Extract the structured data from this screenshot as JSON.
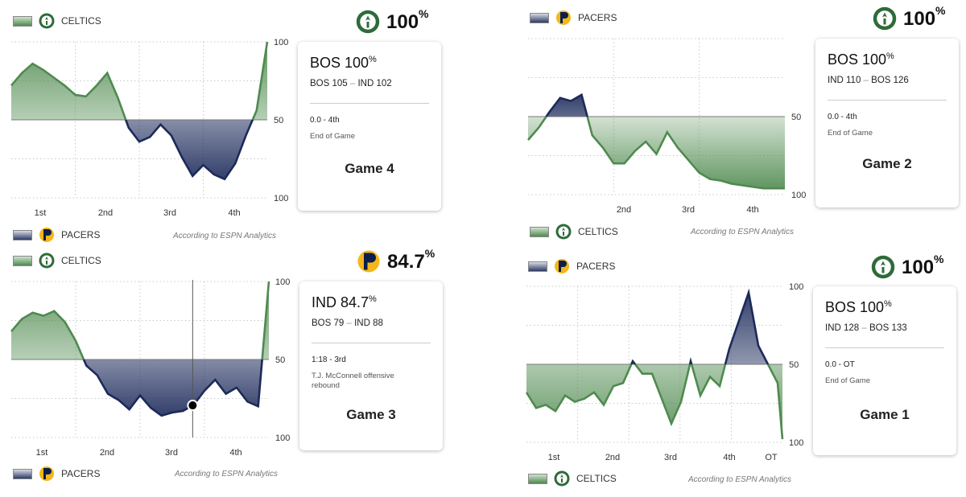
{
  "colors": {
    "celtics": "#4f8a4f",
    "pacers": "#1c2a5a"
  },
  "panels": [
    {
      "top_team": "CELTICS",
      "bottom_team": "PACERS",
      "winner": "100",
      "winner_team": "celtics",
      "card": {
        "prob": "BOS 100",
        "score_a": "BOS 105",
        "score_b": "IND 102",
        "clock": "0.0 - 4th",
        "event": "End of Game",
        "game": "Game 4"
      },
      "credit": "According to ESPN Analytics"
    },
    {
      "top_team": "PACERS",
      "bottom_team": "CELTICS",
      "winner": "100",
      "winner_team": "celtics",
      "card": {
        "prob": "BOS 100",
        "score_a": "IND 110",
        "score_b": "BOS 126",
        "clock": "0.0 - 4th",
        "event": "End of Game",
        "game": "Game 2"
      },
      "credit": "According to ESPN Analytics"
    },
    {
      "top_team": "CELTICS",
      "bottom_team": "PACERS",
      "winner": "84.7",
      "winner_team": "pacers",
      "card": {
        "prob": "IND 84.7",
        "score_a": "BOS 79",
        "score_b": "IND 88",
        "clock": "1:18 - 3rd",
        "event": "T.J. McConnell offensive rebound",
        "game": "Game 3"
      },
      "credit": "According to ESPN Analytics"
    },
    {
      "top_team": "PACERS",
      "bottom_team": "CELTICS",
      "winner": "100",
      "winner_team": "celtics",
      "card": {
        "prob": "BOS 100",
        "score_a": "IND 128",
        "score_b": "BOS 133",
        "clock": "0.0 - OT",
        "event": "End of Game",
        "game": "Game 1"
      },
      "credit": "According to ESPN Analytics"
    }
  ],
  "chart_data": [
    {
      "type": "area",
      "title": "Game 4",
      "y_ticks": [
        "100",
        "50",
        "100"
      ],
      "x_labels": [
        "1st",
        "2nd",
        "3rd",
        "4th"
      ],
      "top_team": "CELTICS",
      "bottom_team": "PACERS",
      "x": [
        0,
        2,
        4,
        6,
        8,
        10,
        12,
        14,
        16,
        18,
        20,
        22,
        24,
        26,
        28,
        30,
        32,
        34,
        36,
        38,
        40,
        42,
        44,
        46,
        48
      ],
      "y": [
        72,
        80,
        86,
        82,
        77,
        72,
        66,
        65,
        72,
        80,
        64,
        45,
        36,
        39,
        47,
        40,
        26,
        14,
        21,
        15,
        12,
        22,
        40,
        56,
        100
      ],
      "marker_x": null
    },
    {
      "type": "area",
      "title": "Game 2",
      "y_ticks": [
        "50",
        "100"
      ],
      "x_labels": [
        "2nd",
        "3rd",
        "4th"
      ],
      "top_team": "PACERS",
      "bottom_team": "CELTICS",
      "x": [
        0,
        2,
        4,
        6,
        8,
        10,
        12,
        14,
        16,
        18,
        20,
        22,
        24,
        26,
        28,
        30,
        32,
        34,
        36,
        38,
        40,
        42,
        44,
        46,
        48
      ],
      "y": [
        35,
        43,
        53,
        62,
        60,
        64,
        38,
        30,
        20,
        20,
        28,
        34,
        26,
        40,
        30,
        22,
        14,
        10,
        9,
        7,
        6,
        5,
        4,
        4,
        4
      ],
      "marker_x": null
    },
    {
      "type": "area",
      "title": "Game 3",
      "y_ticks": [
        "100",
        "50",
        "100"
      ],
      "x_labels": [
        "1st",
        "2nd",
        "3rd",
        "4th"
      ],
      "top_team": "CELTICS",
      "bottom_team": "PACERS",
      "x": [
        0,
        2,
        4,
        6,
        8,
        10,
        12,
        14,
        16,
        18,
        20,
        22,
        24,
        26,
        28,
        30,
        32,
        34,
        36,
        38,
        40,
        42,
        44,
        46,
        48
      ],
      "y": [
        68,
        76,
        80,
        78,
        81,
        74,
        62,
        46,
        40,
        28,
        24,
        18,
        27,
        19,
        14,
        16,
        17,
        21,
        30,
        37,
        28,
        32,
        23,
        20,
        100
      ],
      "marker_x": 33.8
    },
    {
      "type": "area",
      "title": "Game 1",
      "y_ticks": [
        "100",
        "50",
        "100"
      ],
      "x_labels": [
        "1st",
        "2nd",
        "3rd",
        "4th",
        "OT"
      ],
      "top_team": "PACERS",
      "bottom_team": "CELTICS",
      "x": [
        0,
        2,
        4,
        6,
        8,
        10,
        12,
        14,
        16,
        18,
        20,
        22,
        24,
        26,
        28,
        30,
        32,
        34,
        36,
        38,
        40,
        42,
        44,
        46,
        48,
        50,
        52,
        53
      ],
      "y": [
        32,
        22,
        24,
        20,
        30,
        26,
        28,
        32,
        24,
        36,
        38,
        52,
        44,
        44,
        28,
        12,
        26,
        52,
        30,
        42,
        36,
        60,
        78,
        96,
        62,
        50,
        38,
        2
      ],
      "marker_x": null
    }
  ]
}
